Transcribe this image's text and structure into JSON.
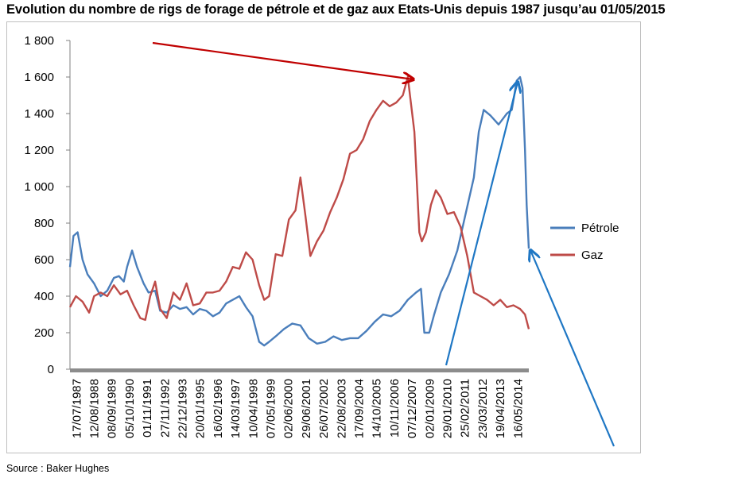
{
  "title": "Evolution du nombre de rigs de forage de pétrole et de gaz aux Etats-Unis depuis 1987 jusqu’au 01/05/2015",
  "source": "Source : Baker Hughes",
  "colors": {
    "petrole": "#4a7ebb",
    "gaz": "#be4b48",
    "annot_red": "#c00000",
    "annot_blue": "#1f77c4",
    "axis": "#808080",
    "frame": "#bfbfbf"
  },
  "chart_data": {
    "type": "line",
    "title": "Evolution du nombre de rigs de forage de pétrole et de gaz aux Etats-Unis depuis 1987 jusqu’au 01/05/2015",
    "xlabel": "",
    "ylabel": "",
    "ylim": [
      0,
      1800
    ],
    "y_ticks": [
      0,
      200,
      400,
      600,
      800,
      1000,
      1200,
      1400,
      1600,
      1800
    ],
    "y_tick_labels": [
      "0",
      "200",
      "400",
      "600",
      "800",
      "1 000",
      "1 200",
      "1 400",
      "1 600",
      "1 800"
    ],
    "x_range": [
      1987.54,
      2015.33
    ],
    "x_tick_labels": [
      "17/07/1987",
      "12/08/1988",
      "08/09/1989",
      "05/10/1990",
      "01/11/1991",
      "27/11/1992",
      "22/12/1993",
      "20/01/1995",
      "16/02/1996",
      "14/03/1997",
      "10/04/1998",
      "07/05/1999",
      "02/06/2000",
      "29/06/2001",
      "26/07/2002",
      "22/08/2003",
      "17/09/2004",
      "14/10/2005",
      "10/11/2006",
      "07/12/2007",
      "02/01/2009",
      "29/01/2010",
      "25/02/2011",
      "23/03/2012",
      "19/04/2013",
      "16/05/2014"
    ],
    "legend": {
      "position": "right",
      "entries": [
        "Pétrole",
        "Gaz"
      ]
    },
    "series": [
      {
        "name": "Pétrole",
        "x": [
          1987.54,
          1987.75,
          1988.0,
          1988.3,
          1988.6,
          1989.0,
          1989.4,
          1989.8,
          1990.2,
          1990.5,
          1990.8,
          1991.0,
          1991.3,
          1991.6,
          1992.0,
          1992.3,
          1992.7,
          1993.0,
          1993.4,
          1993.8,
          1994.2,
          1994.6,
          1995.0,
          1995.4,
          1995.8,
          1996.2,
          1996.6,
          1997.0,
          1997.4,
          1997.8,
          1998.2,
          1998.6,
          1999.0,
          1999.3,
          1999.6,
          2000.0,
          2000.5,
          2001.0,
          2001.5,
          2002.0,
          2002.5,
          2003.0,
          2003.5,
          2004.0,
          2004.5,
          2005.0,
          2005.5,
          2006.0,
          2006.5,
          2007.0,
          2007.5,
          2008.0,
          2008.5,
          2008.8,
          2009.0,
          2009.3,
          2009.6,
          2010.0,
          2010.5,
          2011.0,
          2011.5,
          2012.0,
          2012.3,
          2012.6,
          2013.0,
          2013.5,
          2014.0,
          2014.3,
          2014.6,
          2014.8,
          2014.95,
          2015.1,
          2015.2,
          2015.33
        ],
        "y": [
          560,
          730,
          750,
          600,
          520,
          470,
          400,
          430,
          500,
          510,
          480,
          560,
          650,
          560,
          470,
          420,
          430,
          320,
          310,
          350,
          330,
          340,
          300,
          330,
          320,
          290,
          310,
          360,
          380,
          400,
          340,
          290,
          150,
          130,
          150,
          180,
          220,
          250,
          240,
          170,
          140,
          150,
          180,
          160,
          170,
          170,
          210,
          260,
          300,
          290,
          320,
          380,
          420,
          440,
          200,
          200,
          300,
          420,
          520,
          650,
          850,
          1050,
          1300,
          1420,
          1390,
          1340,
          1400,
          1420,
          1580,
          1600,
          1540,
          1200,
          900,
          660
        ]
      },
      {
        "name": "Gaz",
        "x": [
          1987.54,
          1987.9,
          1988.3,
          1988.7,
          1989.0,
          1989.4,
          1989.8,
          1990.2,
          1990.6,
          1991.0,
          1991.4,
          1991.8,
          1992.1,
          1992.4,
          1992.7,
          1993.0,
          1993.4,
          1993.8,
          1994.2,
          1994.6,
          1995.0,
          1995.4,
          1995.8,
          1996.2,
          1996.6,
          1997.0,
          1997.4,
          1997.8,
          1998.2,
          1998.6,
          1999.0,
          1999.3,
          1999.6,
          2000.0,
          2000.4,
          2000.8,
          2001.2,
          2001.5,
          2001.8,
          2002.1,
          2002.5,
          2002.9,
          2003.3,
          2003.7,
          2004.1,
          2004.5,
          2004.9,
          2005.3,
          2005.7,
          2006.1,
          2006.5,
          2006.9,
          2007.3,
          2007.7,
          2008.0,
          2008.4,
          2008.7,
          2008.85,
          2009.1,
          2009.4,
          2009.7,
          2010.0,
          2010.4,
          2010.8,
          2011.2,
          2011.6,
          2012.0,
          2012.4,
          2012.8,
          2013.2,
          2013.6,
          2014.0,
          2014.4,
          2014.8,
          2015.1,
          2015.33
        ],
        "y": [
          340,
          400,
          370,
          310,
          400,
          420,
          400,
          460,
          410,
          430,
          350,
          280,
          270,
          400,
          480,
          330,
          280,
          420,
          380,
          470,
          350,
          360,
          420,
          420,
          430,
          480,
          560,
          550,
          640,
          600,
          460,
          380,
          400,
          630,
          620,
          820,
          870,
          1050,
          840,
          620,
          700,
          760,
          860,
          940,
          1040,
          1180,
          1200,
          1260,
          1360,
          1420,
          1470,
          1440,
          1460,
          1500,
          1600,
          1300,
          750,
          700,
          750,
          900,
          980,
          940,
          850,
          860,
          780,
          620,
          420,
          400,
          380,
          350,
          380,
          340,
          350,
          330,
          300,
          220
        ]
      }
    ]
  },
  "annotations": [
    {
      "name": "red-arrow-to-gas-peak",
      "color": "#c00000"
    },
    {
      "name": "blue-arrow-to-oil-peak",
      "color": "#1f77c4"
    },
    {
      "name": "blue-arrow-to-oil-drop",
      "color": "#1f77c4"
    }
  ]
}
